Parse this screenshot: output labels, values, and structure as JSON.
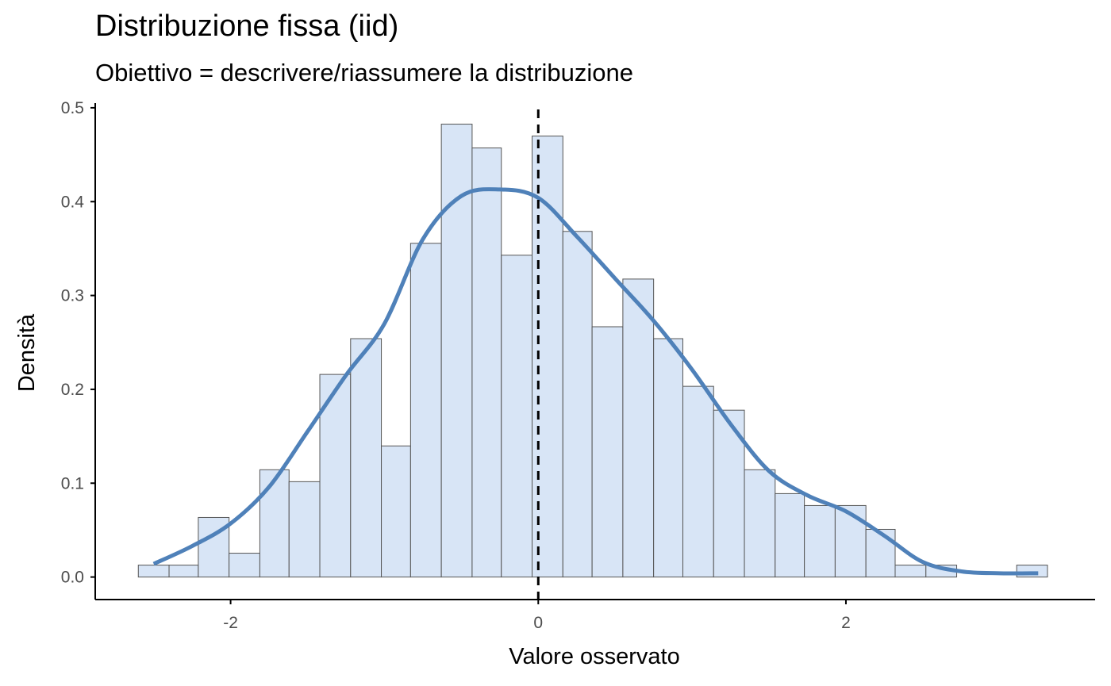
{
  "chart_data": {
    "type": "bar",
    "title": "Distribuzione fissa (iid)",
    "subtitle": "Obiettivo = descrivere/riassumere la distribuzione",
    "xlabel": "Valore osservato",
    "ylabel": "Densità",
    "xlim": [
      -2.88,
      3.62
    ],
    "ylim": [
      -0.024,
      0.505
    ],
    "x_ticks": [
      -2,
      0,
      2
    ],
    "x_tick_labels": [
      "-2",
      "0",
      "2"
    ],
    "y_ticks": [
      0,
      0.1,
      0.2,
      0.3,
      0.4,
      0.5
    ],
    "y_tick_labels": [
      "0.0",
      "0.1",
      "0.2",
      "0.3",
      "0.4",
      "0.5"
    ],
    "grid": false,
    "bin_width": 0.197,
    "bins": [
      {
        "x0": -2.6,
        "x1": -2.4,
        "density": 0.0127
      },
      {
        "x0": -2.4,
        "x1": -2.21,
        "density": 0.0127
      },
      {
        "x0": -2.21,
        "x1": -2.01,
        "density": 0.0635
      },
      {
        "x0": -2.01,
        "x1": -1.81,
        "density": 0.0254
      },
      {
        "x0": -1.81,
        "x1": -1.62,
        "density": 0.1143
      },
      {
        "x0": -1.62,
        "x1": -1.42,
        "density": 0.1016
      },
      {
        "x0": -1.42,
        "x1": -1.22,
        "density": 0.2159
      },
      {
        "x0": -1.22,
        "x1": -1.02,
        "density": 0.254
      },
      {
        "x0": -1.02,
        "x1": -0.83,
        "density": 0.1397
      },
      {
        "x0": -0.83,
        "x1": -0.63,
        "density": 0.3556
      },
      {
        "x0": -0.63,
        "x1": -0.43,
        "density": 0.4826
      },
      {
        "x0": -0.43,
        "x1": -0.24,
        "density": 0.4572
      },
      {
        "x0": -0.24,
        "x1": -0.04,
        "density": 0.3429
      },
      {
        "x0": -0.04,
        "x1": 0.16,
        "density": 0.4699
      },
      {
        "x0": 0.16,
        "x1": 0.35,
        "density": 0.3683
      },
      {
        "x0": 0.35,
        "x1": 0.55,
        "density": 0.2667
      },
      {
        "x0": 0.55,
        "x1": 0.75,
        "density": 0.3175
      },
      {
        "x0": 0.75,
        "x1": 0.94,
        "density": 0.254
      },
      {
        "x0": 0.94,
        "x1": 1.14,
        "density": 0.2032
      },
      {
        "x0": 1.14,
        "x1": 1.34,
        "density": 0.1778
      },
      {
        "x0": 1.34,
        "x1": 1.54,
        "density": 0.1143
      },
      {
        "x0": 1.54,
        "x1": 1.73,
        "density": 0.0889
      },
      {
        "x0": 1.73,
        "x1": 1.93,
        "density": 0.0762
      },
      {
        "x0": 1.93,
        "x1": 2.13,
        "density": 0.0762
      },
      {
        "x0": 2.13,
        "x1": 2.32,
        "density": 0.0508
      },
      {
        "x0": 2.32,
        "x1": 2.52,
        "density": 0.0127
      },
      {
        "x0": 2.52,
        "x1": 2.72,
        "density": 0.0127
      },
      {
        "x0": 2.72,
        "x1": 2.91,
        "density": 0.0
      },
      {
        "x0": 2.91,
        "x1": 3.11,
        "density": 0.0
      },
      {
        "x0": 3.11,
        "x1": 3.31,
        "density": 0.0127
      }
    ],
    "density_curve": {
      "x": [
        -2.5,
        -2.25,
        -2.0,
        -1.75,
        -1.5,
        -1.25,
        -1.0,
        -0.75,
        -0.5,
        -0.25,
        0.0,
        0.25,
        0.5,
        0.75,
        1.0,
        1.25,
        1.5,
        1.75,
        2.0,
        2.25,
        2.5,
        2.75,
        3.0,
        3.25
      ],
      "y": [
        0.014,
        0.033,
        0.057,
        0.096,
        0.155,
        0.215,
        0.27,
        0.36,
        0.406,
        0.413,
        0.404,
        0.363,
        0.318,
        0.273,
        0.221,
        0.163,
        0.113,
        0.087,
        0.07,
        0.044,
        0.016,
        0.006,
        0.004,
        0.004
      ]
    },
    "reference_line": {
      "x": 0,
      "style": "dashed"
    },
    "colors": {
      "bar_fill": "#d8e5f6",
      "bar_stroke": "#555555",
      "curve": "#4f81b9",
      "reference_line": "#000000",
      "axis": "#000000"
    }
  }
}
